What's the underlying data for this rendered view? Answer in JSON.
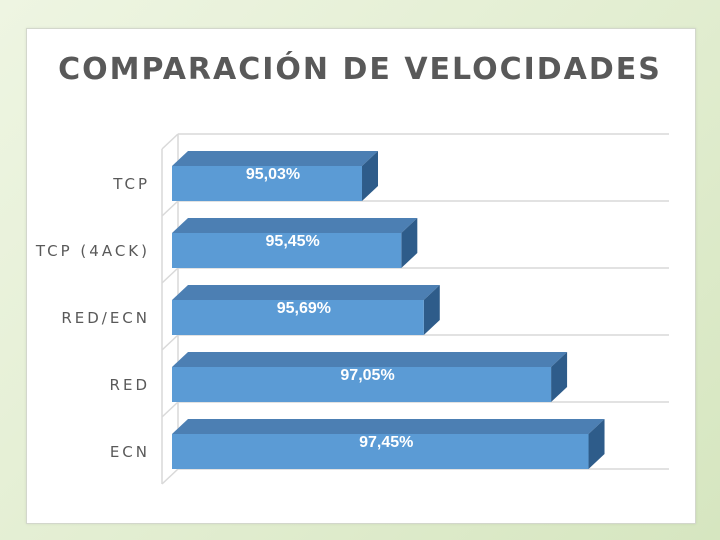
{
  "chart_data": {
    "type": "bar",
    "orientation": "horizontal",
    "style": "3d",
    "title": "COMPARACIÓN  DE VELOCIDADES",
    "categories": [
      "TCP",
      "TCP (4ACK)",
      "RED/ECN",
      "RED",
      "ECN"
    ],
    "values": [
      95.03,
      95.45,
      95.69,
      97.05,
      97.45
    ],
    "value_labels": [
      "95,03%",
      "95,45%",
      "95,69%",
      "97,05%",
      "97,45%"
    ],
    "xlim": [
      93,
      98
    ],
    "grid": true,
    "colors": {
      "bar_front": "#5b9bd5",
      "bar_top": "#4c7fb3",
      "bar_side": "#2e5c8a"
    }
  }
}
